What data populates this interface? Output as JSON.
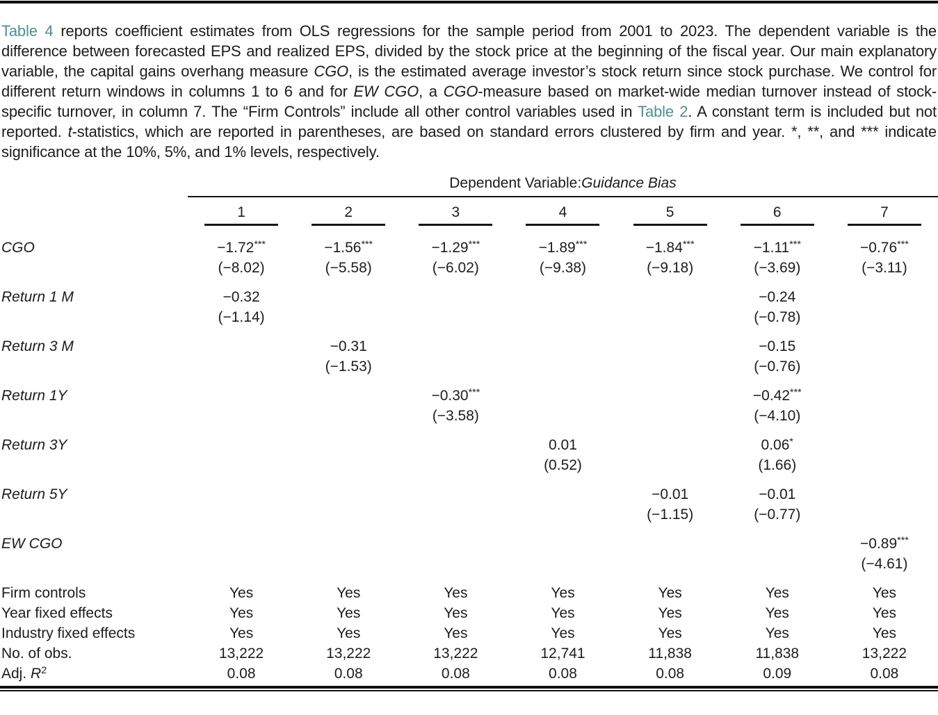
{
  "caption": {
    "segments": [
      {
        "text": "Table 4",
        "style": "link",
        "name": "table-4-link"
      },
      {
        "text": " reports coefficient estimates from OLS regressions for the sample period from 2001 to 2023. The dependent variable is the difference between forecasted EPS and realized EPS, divided by the stock price at the beginning of the fiscal year. Our main explanatory variable, the capital gains overhang measure ",
        "style": "normal"
      },
      {
        "text": "CGO",
        "style": "italic"
      },
      {
        "text": ", is the estimated average investor’s stock return since stock purchase. We control for different return windows in columns 1 to 6 and for ",
        "style": "normal"
      },
      {
        "text": "EW CGO",
        "style": "italic"
      },
      {
        "text": ", a ",
        "style": "normal"
      },
      {
        "text": "CGO",
        "style": "italic"
      },
      {
        "text": "-measure based on market-wide median turnover instead of stock-specific turnover, in column 7. The “Firm Controls” include all other control variables used in ",
        "style": "normal"
      },
      {
        "text": "Table 2",
        "style": "link",
        "name": "table-2-link"
      },
      {
        "text": ". A constant term is included but not reported. ",
        "style": "normal"
      },
      {
        "text": "t",
        "style": "italic"
      },
      {
        "text": "-statistics, which are reported in parentheses, are based on standard errors clustered by firm and year. *, **, and *** indicate significance at the 10%, 5%, and 1% levels, respectively.",
        "style": "normal"
      }
    ]
  },
  "table": {
    "dep_header": {
      "prefix": "Dependent Variable:",
      "variable": "Guidance Bias"
    },
    "column_numbers": [
      "1",
      "2",
      "3",
      "4",
      "5",
      "6",
      "7"
    ],
    "coef_rows": [
      {
        "label": [
          {
            "text": "CGO",
            "style": "italic"
          }
        ],
        "cells": [
          {
            "est": "−1.72",
            "stars": "***",
            "t": "(−8.02)"
          },
          {
            "est": "−1.56",
            "stars": "***",
            "t": "(−5.58)"
          },
          {
            "est": "−1.29",
            "stars": "***",
            "t": "(−6.02)"
          },
          {
            "est": "−1.89",
            "stars": "***",
            "t": "(−9.38)"
          },
          {
            "est": "−1.84",
            "stars": "***",
            "t": "(−9.18)"
          },
          {
            "est": "−1.11",
            "stars": "***",
            "t": "(−3.69)"
          },
          {
            "est": "−0.76",
            "stars": "***",
            "t": "(−3.11)"
          }
        ]
      },
      {
        "label": [
          {
            "text": "Return 1 M",
            "style": "italic"
          }
        ],
        "cells": [
          {
            "est": "−0.32",
            "stars": "",
            "t": "(−1.14)"
          },
          null,
          null,
          null,
          null,
          {
            "est": "−0.24",
            "stars": "",
            "t": "(−0.78)"
          },
          null
        ]
      },
      {
        "label": [
          {
            "text": "Return 3 M",
            "style": "italic"
          }
        ],
        "cells": [
          null,
          {
            "est": "−0.31",
            "stars": "",
            "t": "(−1.53)"
          },
          null,
          null,
          null,
          {
            "est": "−0.15",
            "stars": "",
            "t": "(−0.76)"
          },
          null
        ]
      },
      {
        "label": [
          {
            "text": "Return 1Y",
            "style": "italic"
          }
        ],
        "cells": [
          null,
          null,
          {
            "est": "−0.30",
            "stars": "***",
            "t": "(−3.58)"
          },
          null,
          null,
          {
            "est": "−0.42",
            "stars": "***",
            "t": "(−4.10)"
          },
          null
        ]
      },
      {
        "label": [
          {
            "text": "Return 3Y",
            "style": "italic"
          }
        ],
        "cells": [
          null,
          null,
          null,
          {
            "est": "0.01",
            "stars": "",
            "t": "(0.52)"
          },
          null,
          {
            "est": "0.06",
            "stars": "*",
            "t": "(1.66)"
          },
          null
        ]
      },
      {
        "label": [
          {
            "text": "Return 5Y",
            "style": "italic"
          }
        ],
        "cells": [
          null,
          null,
          null,
          null,
          {
            "est": "−0.01",
            "stars": "",
            "t": "(−1.15)"
          },
          {
            "est": "−0.01",
            "stars": "",
            "t": "(−0.77)"
          },
          null
        ]
      },
      {
        "label": [
          {
            "text": "EW CGO",
            "style": "italic"
          }
        ],
        "cells": [
          null,
          null,
          null,
          null,
          null,
          null,
          {
            "est": "−0.89",
            "stars": "***",
            "t": "(−4.61)"
          }
        ]
      }
    ],
    "info_rows": [
      {
        "label": [
          {
            "text": "Firm controls",
            "style": "normal"
          }
        ],
        "values": [
          "Yes",
          "Yes",
          "Yes",
          "Yes",
          "Yes",
          "Yes",
          "Yes"
        ]
      },
      {
        "label": [
          {
            "text": "Year fixed effects",
            "style": "normal"
          }
        ],
        "values": [
          "Yes",
          "Yes",
          "Yes",
          "Yes",
          "Yes",
          "Yes",
          "Yes"
        ]
      },
      {
        "label": [
          {
            "text": "Industry fixed effects",
            "style": "normal"
          }
        ],
        "values": [
          "Yes",
          "Yes",
          "Yes",
          "Yes",
          "Yes",
          "Yes",
          "Yes"
        ]
      },
      {
        "label": [
          {
            "text": "No. of obs.",
            "style": "normal"
          }
        ],
        "values": [
          "13,222",
          "13,222",
          "13,222",
          "12,741",
          "11,838",
          "11,838",
          "13,222"
        ]
      },
      {
        "label": [
          {
            "text": "Adj. ",
            "style": "normal"
          },
          {
            "text": "R",
            "style": "italic"
          },
          {
            "text": "2",
            "style": "sup"
          }
        ],
        "values": [
          "0.08",
          "0.08",
          "0.08",
          "0.08",
          "0.08",
          "0.09",
          "0.08"
        ]
      }
    ]
  },
  "colors": {
    "link_teal": "#4d8f91",
    "text": "#1c1c1c",
    "rule_black": "#101010"
  }
}
